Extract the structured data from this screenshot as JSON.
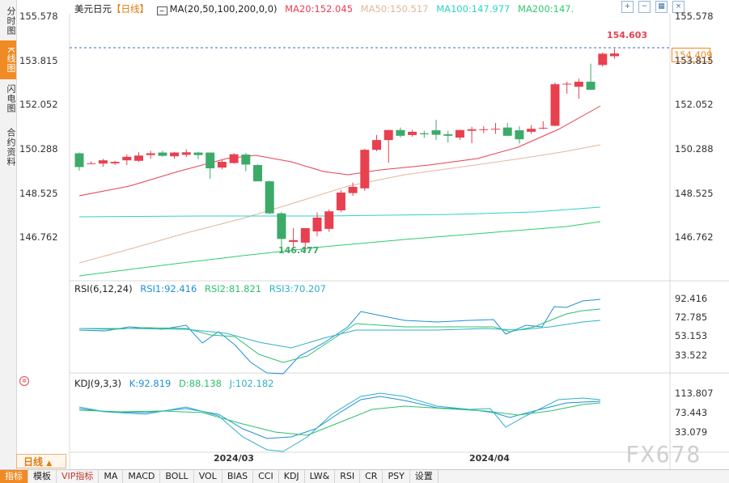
{
  "sidebar": {
    "tabs": [
      {
        "label": "分时图",
        "active": false
      },
      {
        "label": "K线图",
        "active": true
      },
      {
        "label": "闪电图",
        "active": false
      },
      {
        "label": "合约资料",
        "active": false
      }
    ]
  },
  "header": {
    "symbol": "美元日元",
    "period_tag": "【日线】",
    "ma_label": "MA(20,50,100,200,0,0)",
    "ma20": "MA20:152.045",
    "ma50": "MA50:150.517",
    "ma100": "MA100:147.977",
    "ma200": "MA200:147."
  },
  "toolbar_icons": [
    "zoom-in-icon",
    "zoom-out-icon",
    "grid-icon",
    "close-icon"
  ],
  "price_axis": [
    "155.578",
    "153.815",
    "152.052",
    "150.288",
    "148.525",
    "146.762"
  ],
  "annotations": {
    "high": "154.603",
    "low": "146.477",
    "current": "154.409"
  },
  "rsi": {
    "title": "RSI(6,12,24)",
    "rsi1": "RSI1:92.416",
    "rsi2": "RSI2:81.821",
    "rsi3": "RSI3:70.207",
    "axis": [
      "92.416",
      "72.785",
      "53.153",
      "33.522"
    ]
  },
  "kdj": {
    "title": "KDJ(9,3,3)",
    "k": "K:92.819",
    "d": "D:88.138",
    "j": "J:102.182",
    "axis": [
      "113.807",
      "73.443",
      "33.079"
    ]
  },
  "x_axis": [
    "2024/03",
    "2024/04"
  ],
  "period_button": "日线",
  "bottom_tabs": [
    {
      "label": "指标",
      "active": true
    },
    {
      "label": "模板"
    },
    {
      "label": "VIP指标",
      "vip": true
    },
    {
      "label": "MA"
    },
    {
      "label": "MACD"
    },
    {
      "label": "BOLL"
    },
    {
      "label": "VOL"
    },
    {
      "label": "BIAS"
    },
    {
      "label": "CCI"
    },
    {
      "label": "KDJ"
    },
    {
      "label": "LW&"
    },
    {
      "label": "RSI"
    },
    {
      "label": "CR"
    },
    {
      "label": "PSY"
    },
    {
      "label": "设置"
    }
  ],
  "watermark": "FX678",
  "colors": {
    "up": "#e8404f",
    "down": "#3daa6a",
    "ma20": "#e8404f",
    "ma50": "#e0b89a",
    "ma100": "#2bd4c4",
    "ma200": "#2ecc6a",
    "rsi1": "#1e90d8",
    "rsi2": "#2ec06a",
    "rsi3": "#30b0c8"
  },
  "chart_data": {
    "type": "candlestick",
    "yrange": [
      146.2,
      155.9
    ],
    "candles": [
      {
        "o": 150.42,
        "h": 150.45,
        "l": 149.73,
        "c": 149.87
      },
      {
        "o": 150.02,
        "h": 150.1,
        "l": 149.98,
        "c": 150.02
      },
      {
        "o": 150.01,
        "h": 150.2,
        "l": 149.88,
        "c": 150.14
      },
      {
        "o": 150.02,
        "h": 150.12,
        "l": 149.95,
        "c": 150.08
      },
      {
        "o": 150.14,
        "h": 150.37,
        "l": 149.95,
        "c": 150.28
      },
      {
        "o": 150.12,
        "h": 150.47,
        "l": 150.07,
        "c": 150.33
      },
      {
        "o": 150.35,
        "h": 150.52,
        "l": 150.2,
        "c": 150.42
      },
      {
        "o": 150.45,
        "h": 150.52,
        "l": 150.28,
        "c": 150.32
      },
      {
        "o": 150.3,
        "h": 150.48,
        "l": 150.2,
        "c": 150.45
      },
      {
        "o": 150.36,
        "h": 150.58,
        "l": 150.28,
        "c": 150.46
      },
      {
        "o": 150.45,
        "h": 150.48,
        "l": 150.18,
        "c": 150.35
      },
      {
        "o": 150.45,
        "h": 150.45,
        "l": 149.4,
        "c": 149.82
      },
      {
        "o": 149.85,
        "h": 150.18,
        "l": 149.78,
        "c": 150.08
      },
      {
        "o": 150.03,
        "h": 150.43,
        "l": 150.0,
        "c": 150.38
      },
      {
        "o": 150.37,
        "h": 150.43,
        "l": 149.7,
        "c": 149.97
      },
      {
        "o": 149.95,
        "h": 149.98,
        "l": 149.3,
        "c": 149.3
      },
      {
        "o": 149.3,
        "h": 149.33,
        "l": 147.98,
        "c": 148.02
      },
      {
        "o": 148.02,
        "h": 148.08,
        "l": 146.48,
        "c": 147.0
      },
      {
        "o": 146.88,
        "h": 147.43,
        "l": 146.6,
        "c": 146.95
      },
      {
        "o": 146.85,
        "h": 147.38,
        "l": 146.53,
        "c": 147.43
      },
      {
        "o": 147.3,
        "h": 148.06,
        "l": 147.1,
        "c": 147.85
      },
      {
        "o": 147.4,
        "h": 148.18,
        "l": 147.28,
        "c": 148.1
      },
      {
        "o": 148.14,
        "h": 148.95,
        "l": 148.07,
        "c": 148.85
      },
      {
        "o": 148.83,
        "h": 149.25,
        "l": 148.72,
        "c": 149.08
      },
      {
        "o": 149.02,
        "h": 150.6,
        "l": 148.92,
        "c": 150.56
      },
      {
        "o": 150.56,
        "h": 151.15,
        "l": 150.5,
        "c": 150.95
      },
      {
        "o": 150.95,
        "h": 151.35,
        "l": 150.04,
        "c": 151.35
      },
      {
        "o": 151.35,
        "h": 151.45,
        "l": 151.05,
        "c": 151.12
      },
      {
        "o": 151.15,
        "h": 151.35,
        "l": 151.08,
        "c": 151.28
      },
      {
        "o": 151.22,
        "h": 151.32,
        "l": 151.04,
        "c": 151.18
      },
      {
        "o": 151.34,
        "h": 151.76,
        "l": 150.95,
        "c": 151.16
      },
      {
        "o": 151.18,
        "h": 151.32,
        "l": 150.85,
        "c": 151.12
      },
      {
        "o": 151.05,
        "h": 151.35,
        "l": 150.95,
        "c": 151.35
      },
      {
        "o": 151.32,
        "h": 151.48,
        "l": 150.82,
        "c": 151.38
      },
      {
        "o": 151.35,
        "h": 151.5,
        "l": 151.22,
        "c": 151.38
      },
      {
        "o": 151.39,
        "h": 151.63,
        "l": 151.2,
        "c": 151.4
      },
      {
        "o": 151.45,
        "h": 151.63,
        "l": 151.1,
        "c": 151.12
      },
      {
        "o": 151.34,
        "h": 151.5,
        "l": 150.81,
        "c": 150.98
      },
      {
        "o": 151.28,
        "h": 151.55,
        "l": 151.2,
        "c": 151.4
      },
      {
        "o": 151.42,
        "h": 151.7,
        "l": 151.38,
        "c": 151.44
      },
      {
        "o": 151.52,
        "h": 153.25,
        "l": 151.5,
        "c": 153.18
      },
      {
        "o": 153.17,
        "h": 153.28,
        "l": 152.8,
        "c": 153.2
      },
      {
        "o": 153.08,
        "h": 153.4,
        "l": 152.6,
        "c": 153.28
      },
      {
        "o": 153.28,
        "h": 154.0,
        "l": 152.95,
        "c": 152.96
      },
      {
        "o": 153.95,
        "h": 154.45,
        "l": 153.88,
        "c": 154.4
      },
      {
        "o": 154.3,
        "h": 154.6,
        "l": 154.2,
        "c": 154.41
      }
    ]
  }
}
